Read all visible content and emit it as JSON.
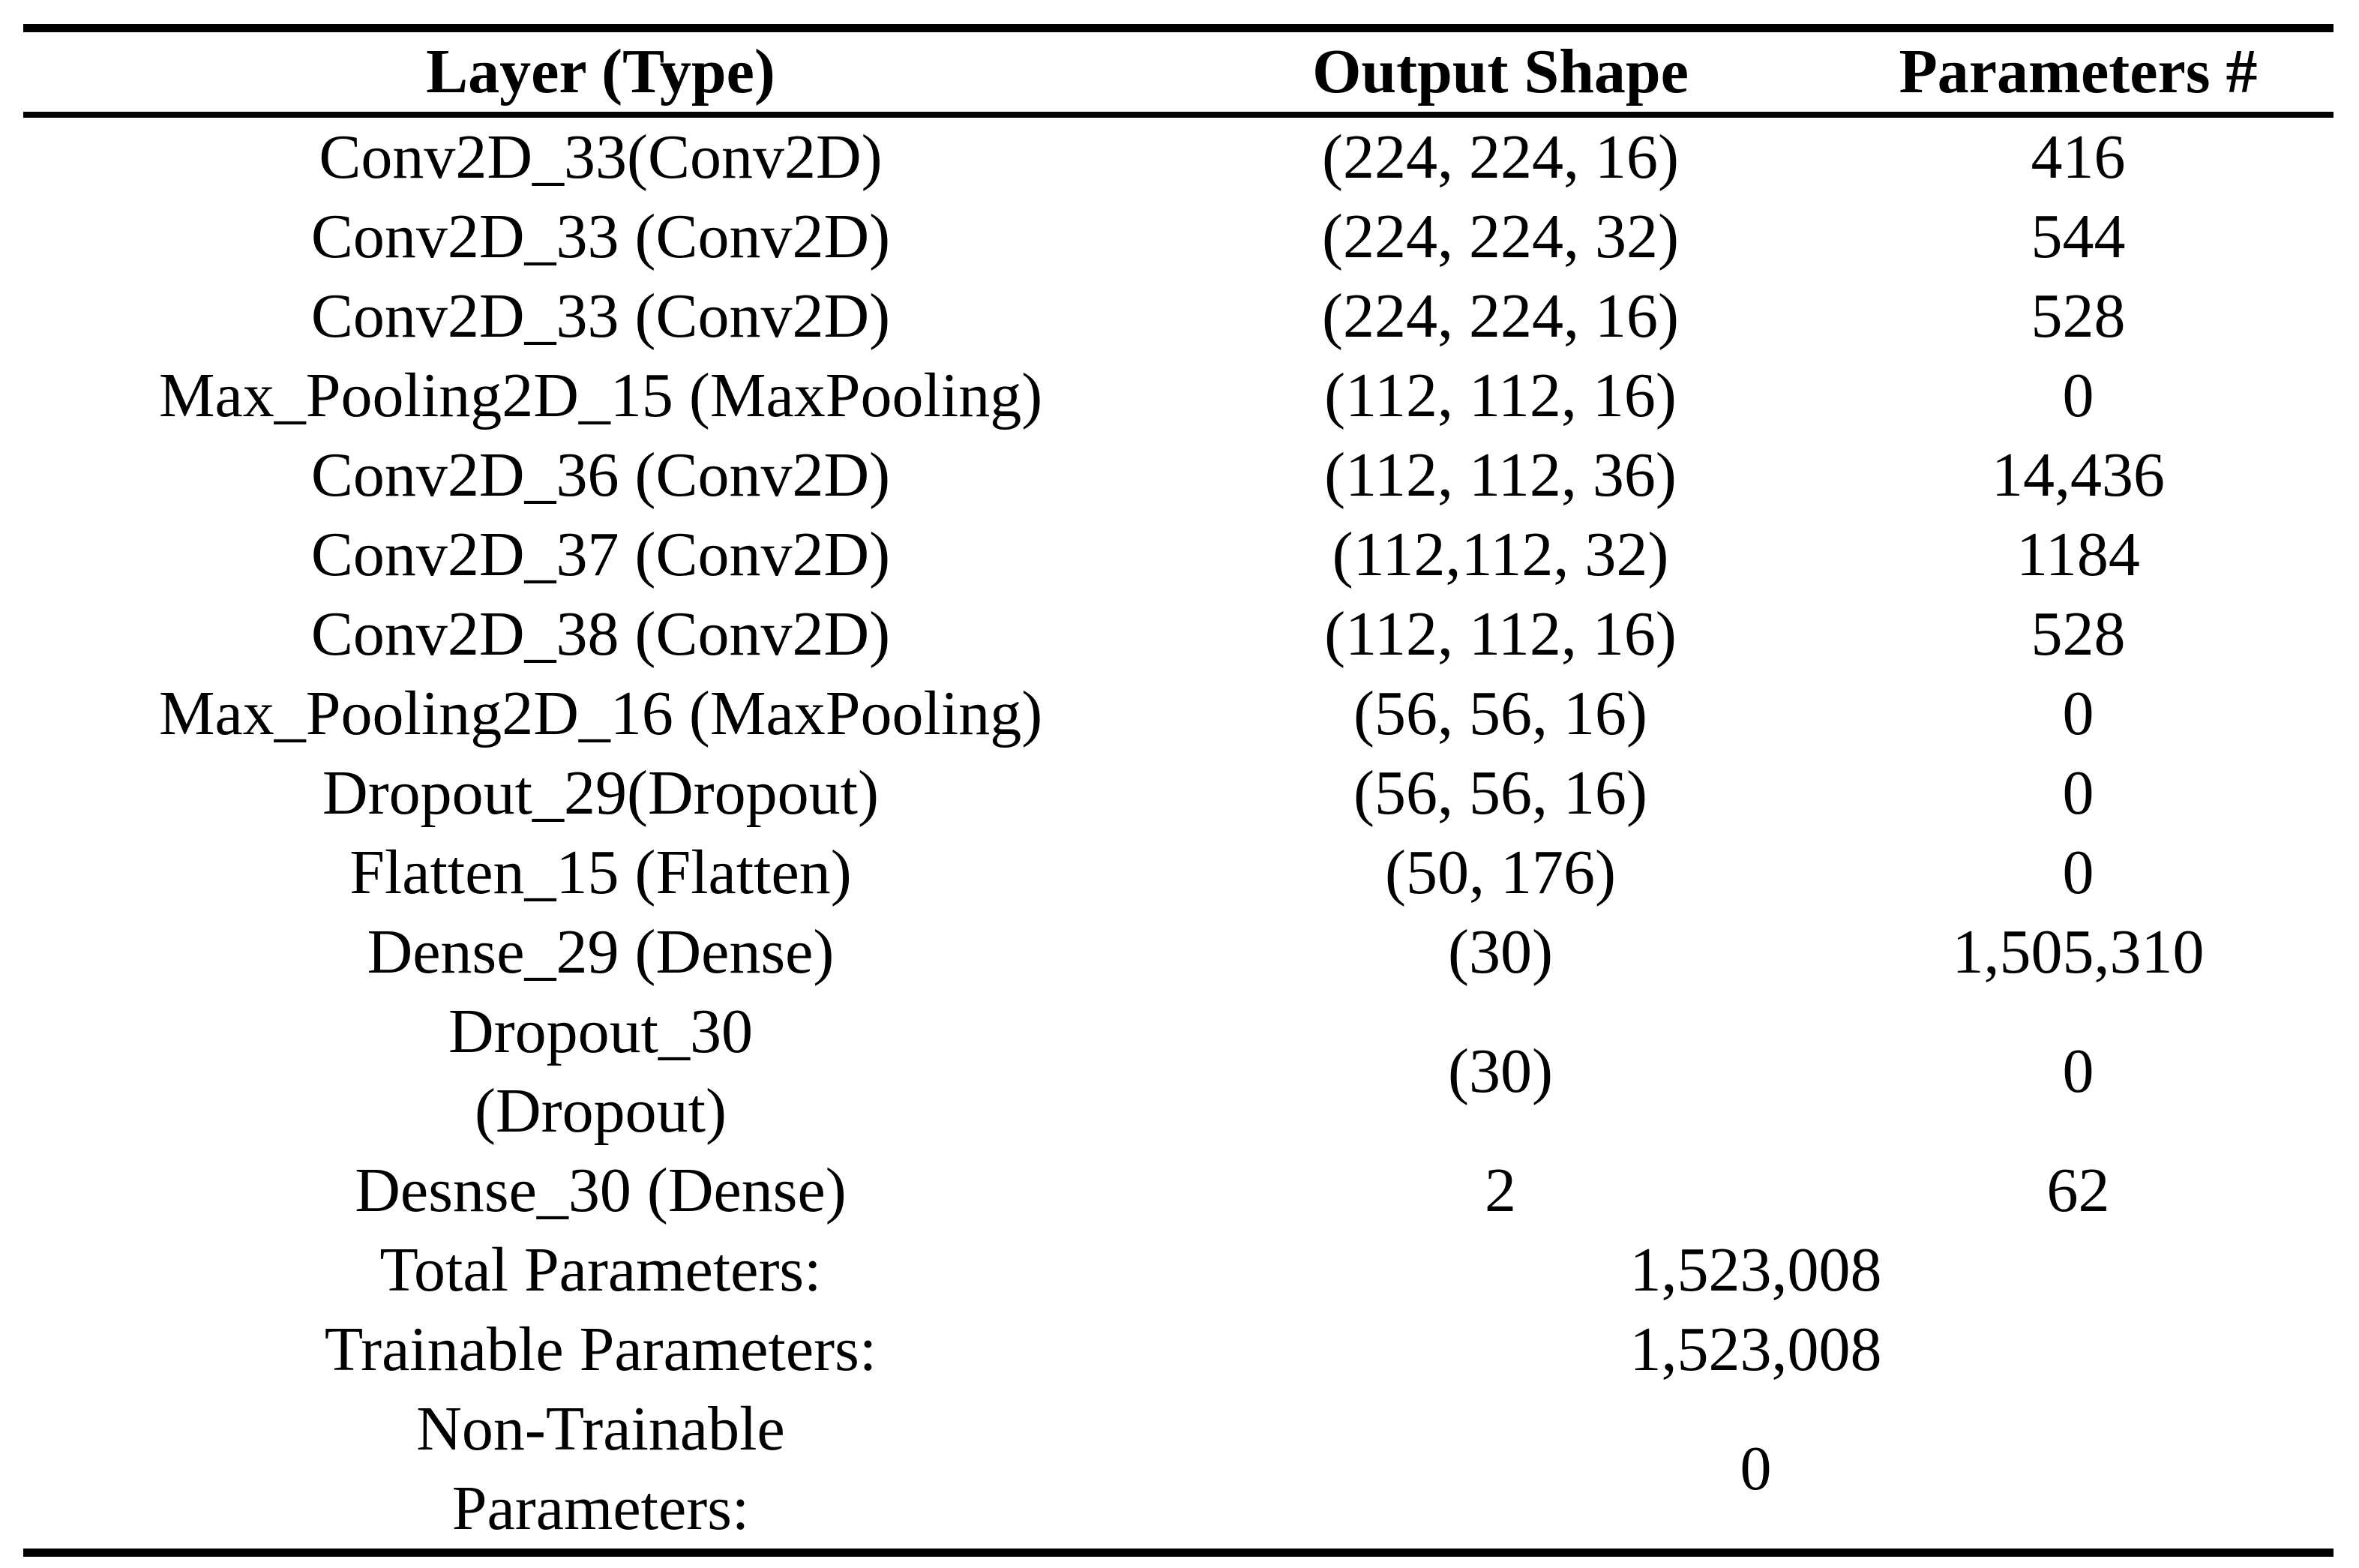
{
  "page": {
    "background_color": "#ffffff",
    "text_color": "#000000",
    "rule_color": "#000000"
  },
  "table": {
    "columns": [
      {
        "label": "Layer (Type)"
      },
      {
        "label": "Output Shape"
      },
      {
        "label": "Parameters #"
      }
    ],
    "rows": [
      {
        "layer": "Conv2D_33(Conv2D)",
        "output_shape": "(224, 224, 16)",
        "parameters": "416"
      },
      {
        "layer": "Conv2D_33 (Conv2D)",
        "output_shape": "(224, 224, 32)",
        "parameters": "544"
      },
      {
        "layer": "Conv2D_33 (Conv2D)",
        "output_shape": "(224, 224, 16)",
        "parameters": "528"
      },
      {
        "layer": "Max_Pooling2D_15 (MaxPooling)",
        "output_shape": "(112, 112, 16)",
        "parameters": "0"
      },
      {
        "layer": "Conv2D_36 (Conv2D)",
        "output_shape": "(112, 112, 36)",
        "parameters": "14,436"
      },
      {
        "layer": "Conv2D_37 (Conv2D)",
        "output_shape": "(112,112, 32)",
        "parameters": "1184"
      },
      {
        "layer": "Conv2D_38 (Conv2D)",
        "output_shape": "(112, 112, 16)",
        "parameters": "528"
      },
      {
        "layer": "Max_Pooling2D_16 (MaxPooling)",
        "output_shape": "(56, 56, 16)",
        "parameters": "0"
      },
      {
        "layer": "Dropout_29(Dropout)",
        "output_shape": "(56, 56, 16)",
        "parameters": "0"
      },
      {
        "layer": "Flatten_15 (Flatten)",
        "output_shape": "(50, 176)",
        "parameters": "0"
      },
      {
        "layer": "Dense_29 (Dense)",
        "output_shape": "(30)",
        "parameters": "1,505,310"
      },
      {
        "layer": "Dropout_30\n(Dropout)",
        "output_shape": "(30)",
        "parameters": "0"
      },
      {
        "layer": "Desnse_30 (Dense)",
        "output_shape": "2",
        "parameters": "62"
      }
    ],
    "summary": [
      {
        "label": "Total Parameters:",
        "value": "1,523,008"
      },
      {
        "label": "Trainable Parameters:",
        "value": "1,523,008"
      },
      {
        "label": "Non-Trainable\nParameters:",
        "value": "0"
      }
    ]
  }
}
